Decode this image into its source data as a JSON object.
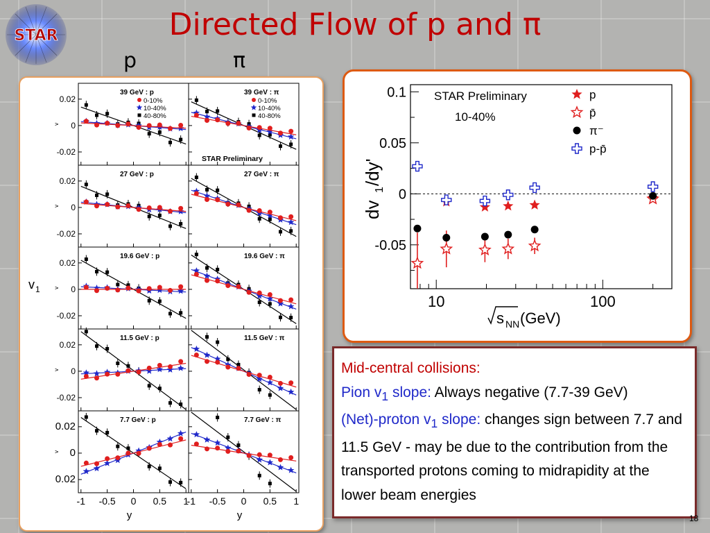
{
  "slide": {
    "title": "Directed Flow of p and π",
    "logo_text": "STAR",
    "page_number": "18",
    "column_labels": [
      "p",
      "π"
    ]
  },
  "colors": {
    "title_red": "#c00000",
    "series_red": "#e01e1e",
    "series_blue": "#1f28c9",
    "series_black": "#000000",
    "frame_orange": "#dd5a12",
    "box_border": "#7a2a2a"
  },
  "text_box": {
    "line1": "Mid-central collisions:",
    "pion_label": "Pion v",
    "pion_sub": "1",
    "pion_label_end": " slope:",
    "pion_text": " Always negative (7.7-39 GeV)",
    "proton_label": "(Net)-proton v",
    "proton_sub": "1",
    "proton_label_end": " slope:",
    "proton_text": " changes sign between 7.7 and 11.5 GeV - may be due to the  contribution from the transported protons coming to midrapidity at the lower beam energies"
  },
  "chart_data": [
    {
      "type": "line",
      "panel": "left-grid",
      "y_axis_label": "v",
      "y_axis_label_sub": "1",
      "x_axis_label": "y",
      "inner_y_label": "v",
      "inner_y_label_sub": "1",
      "x_ticks": [
        "-1",
        "-0.5",
        "0",
        "0.5",
        "1"
      ],
      "y_ticks": [
        "0.02",
        "0",
        "-0.02"
      ],
      "y_ticks_bottom_row": [
        "0.02",
        "0",
        "0.02"
      ],
      "xlim": [
        -1.05,
        1.05
      ],
      "ylim": [
        -0.03,
        0.032
      ],
      "legend_title": "39 GeV : p",
      "legend_title_pi": "39 GeV : π",
      "legend_entries": [
        "0-10%",
        "10-40%",
        "40-80%"
      ],
      "preliminary_label": "STAR Preliminary",
      "panels": [
        {
          "title": "39 GeV : p",
          "column": "p",
          "row": 0,
          "slopes": {
            "0-10%": -0.002,
            "10-40%": -0.003,
            "40-80%": -0.014
          }
        },
        {
          "title": "39 GeV : π",
          "column": "pi",
          "row": 0,
          "slopes": {
            "0-10%": -0.007,
            "10-40%": -0.01,
            "40-80%": -0.018
          }
        },
        {
          "title": "27 GeV : p",
          "column": "p",
          "row": 1,
          "slopes": {
            "0-10%": -0.003,
            "10-40%": -0.004,
            "40-80%": -0.016
          }
        },
        {
          "title": "27 GeV : π",
          "column": "pi",
          "row": 1,
          "slopes": {
            "0-10%": -0.01,
            "10-40%": -0.013,
            "40-80%": -0.022
          }
        },
        {
          "title": "19.6 GeV : p",
          "column": "p",
          "row": 2,
          "slopes": {
            "0-10%": 0.0,
            "10-40%": -0.002,
            "40-80%": -0.022
          }
        },
        {
          "title": "19.6 GeV : π",
          "column": "pi",
          "row": 2,
          "slopes": {
            "0-10%": -0.011,
            "10-40%": -0.015,
            "40-80%": -0.026
          }
        },
        {
          "title": "11.5 GeV : p",
          "column": "p",
          "row": 3,
          "slopes": {
            "0-10%": 0.006,
            "10-40%": 0.002,
            "40-80%": -0.03
          }
        },
        {
          "title": "11.5 GeV : π",
          "column": "pi",
          "row": 3,
          "slopes": {
            "0-10%": -0.012,
            "10-40%": -0.018,
            "40-80%": -0.04
          }
        },
        {
          "title": "7.7 GeV : p",
          "column": "p",
          "row": 4,
          "slopes": {
            "0-10%": 0.01,
            "10-40%": 0.016,
            "40-80%": -0.027
          }
        },
        {
          "title": "7.7 GeV : π",
          "column": "pi",
          "row": 4,
          "slopes": {
            "0-10%": -0.006,
            "10-40%": -0.015,
            "40-80%": -0.05
          }
        }
      ]
    },
    {
      "type": "scatter",
      "panel": "right-slope",
      "title": "STAR Preliminary",
      "subtitle": "10-40%",
      "ylabel": "dv",
      "ylabel_sub": "1",
      "ylabel_end": "/dy'",
      "xlabel": "√s",
      "xlabel_sub": "NN",
      "xlabel_end": " (GeV)",
      "x_scale": "log",
      "xlim": [
        7,
        260
      ],
      "ylim": [
        -0.093,
        0.107
      ],
      "x_ticks": [
        10,
        100
      ],
      "x_tick_labels": [
        "10",
        "100"
      ],
      "y_ticks": [
        0.1,
        0.05,
        0,
        -0.05
      ],
      "y_tick_labels": [
        "0.1",
        "0.05",
        "0",
        "-0.05"
      ],
      "legend_position": "top-right",
      "series": [
        {
          "name": "p",
          "marker": "star-filled",
          "color": "#e01e1e",
          "x": [
            11.5,
            19.6,
            27,
            39,
            200
          ],
          "y": [
            -0.008,
            -0.013,
            -0.012,
            -0.011,
            -0.004
          ]
        },
        {
          "name": "p̄",
          "marker": "star-open",
          "color": "#e01e1e",
          "x": [
            7.7,
            11.5,
            19.6,
            27,
            39,
            200
          ],
          "y": [
            -0.068,
            -0.054,
            -0.055,
            -0.054,
            -0.051,
            -0.005
          ],
          "err": [
            0.03,
            0.018,
            0.012,
            0.01,
            0.008,
            0.003
          ]
        },
        {
          "name": "π⁻",
          "marker": "circle-filled",
          "color": "#000000",
          "x": [
            7.7,
            11.5,
            19.6,
            27,
            39,
            200
          ],
          "y": [
            -0.034,
            -0.043,
            -0.042,
            -0.04,
            -0.035,
            -0.002
          ],
          "err": [
            0.002,
            0.002,
            0.002,
            0.002,
            0.002,
            0.002
          ]
        },
        {
          "name": "p-p̄",
          "marker": "cross-open",
          "color": "#1f28c9",
          "x": [
            7.7,
            11.5,
            19.6,
            27,
            39,
            200
          ],
          "y": [
            0.027,
            -0.006,
            -0.007,
            -0.001,
            0.006,
            0.007
          ]
        }
      ]
    }
  ]
}
